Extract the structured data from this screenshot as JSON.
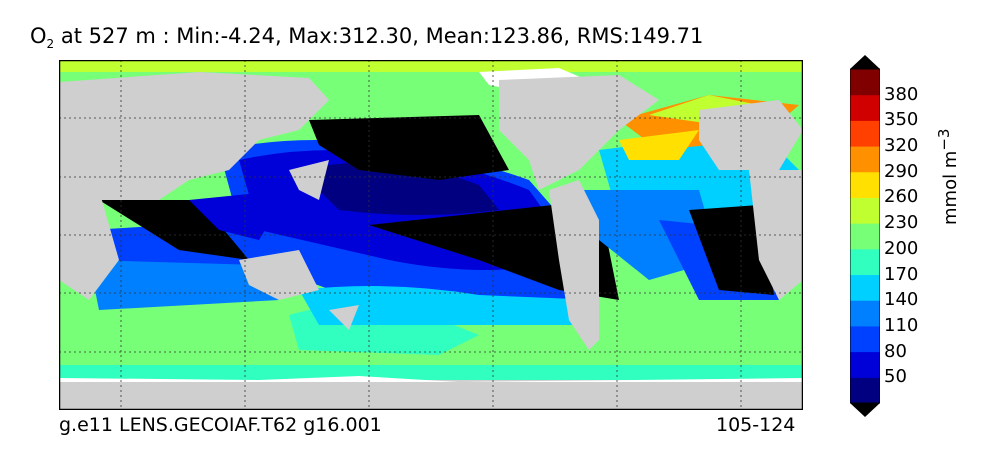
{
  "title": {
    "var_main": "O",
    "var_sub": "2",
    "text": " at 527 m : Min:-4.24, Max:312.30, Mean:123.86, RMS:149.71"
  },
  "footer": {
    "left": "g.e11 LENS.GECOIAF.T62 g16.001",
    "right": "105-124"
  },
  "colorbar": {
    "label_main": "mmol m",
    "label_sup": "−3",
    "ticks": [
      "380",
      "350",
      "320",
      "290",
      "260",
      "230",
      "200",
      "170",
      "140",
      "110",
      "80",
      "50"
    ],
    "colors": [
      "#000080",
      "#0000d8",
      "#0040ff",
      "#0080ff",
      "#00d0ff",
      "#30ffc0",
      "#78ff78",
      "#c0ff30",
      "#ffe000",
      "#ff9000",
      "#ff4000",
      "#d00000",
      "#800000"
    ]
  },
  "map_colors": {
    "land": "#cfcfcf",
    "black": "#000000"
  }
}
